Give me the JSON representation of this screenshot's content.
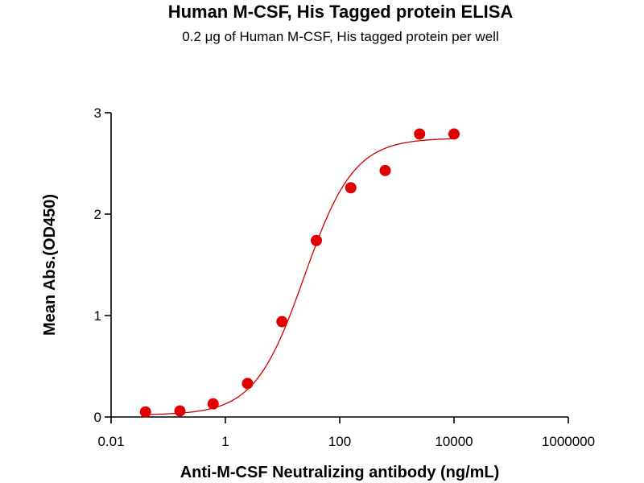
{
  "chart_data": {
    "type": "scatter",
    "title": "Human M-CSF, His Tagged protein ELISA",
    "subtitle": "0.2 μg of Human M-CSF, His tagged protein per well",
    "xlabel": "Anti-M-CSF Neutralizing antibody (ng/mL)",
    "ylabel": "Mean Abs.(OD450)",
    "x_scale": "log",
    "xlim": [
      0.01,
      1000000
    ],
    "ylim": [
      0,
      3
    ],
    "x_ticks": [
      0.01,
      1,
      100,
      10000,
      1000000
    ],
    "x_tick_labels": [
      "0.01",
      "1",
      "100",
      "10000",
      "1000000"
    ],
    "y_ticks": [
      0,
      1,
      2,
      3
    ],
    "y_tick_labels": [
      "0",
      "1",
      "2",
      "3"
    ],
    "grid": false,
    "color": "#e00000",
    "series": [
      {
        "x": [
          0.04,
          0.16,
          0.61,
          2.44,
          9.77,
          39.06,
          156.25,
          625,
          2500,
          10000
        ],
        "y": [
          0.05,
          0.06,
          0.13,
          0.33,
          0.94,
          1.74,
          2.26,
          2.43,
          2.79,
          2.79
        ]
      }
    ],
    "fit_curve": {
      "type": "4PL",
      "bottom": 0.02,
      "top": 2.75,
      "ec50": 24,
      "hill": 1.0
    }
  }
}
